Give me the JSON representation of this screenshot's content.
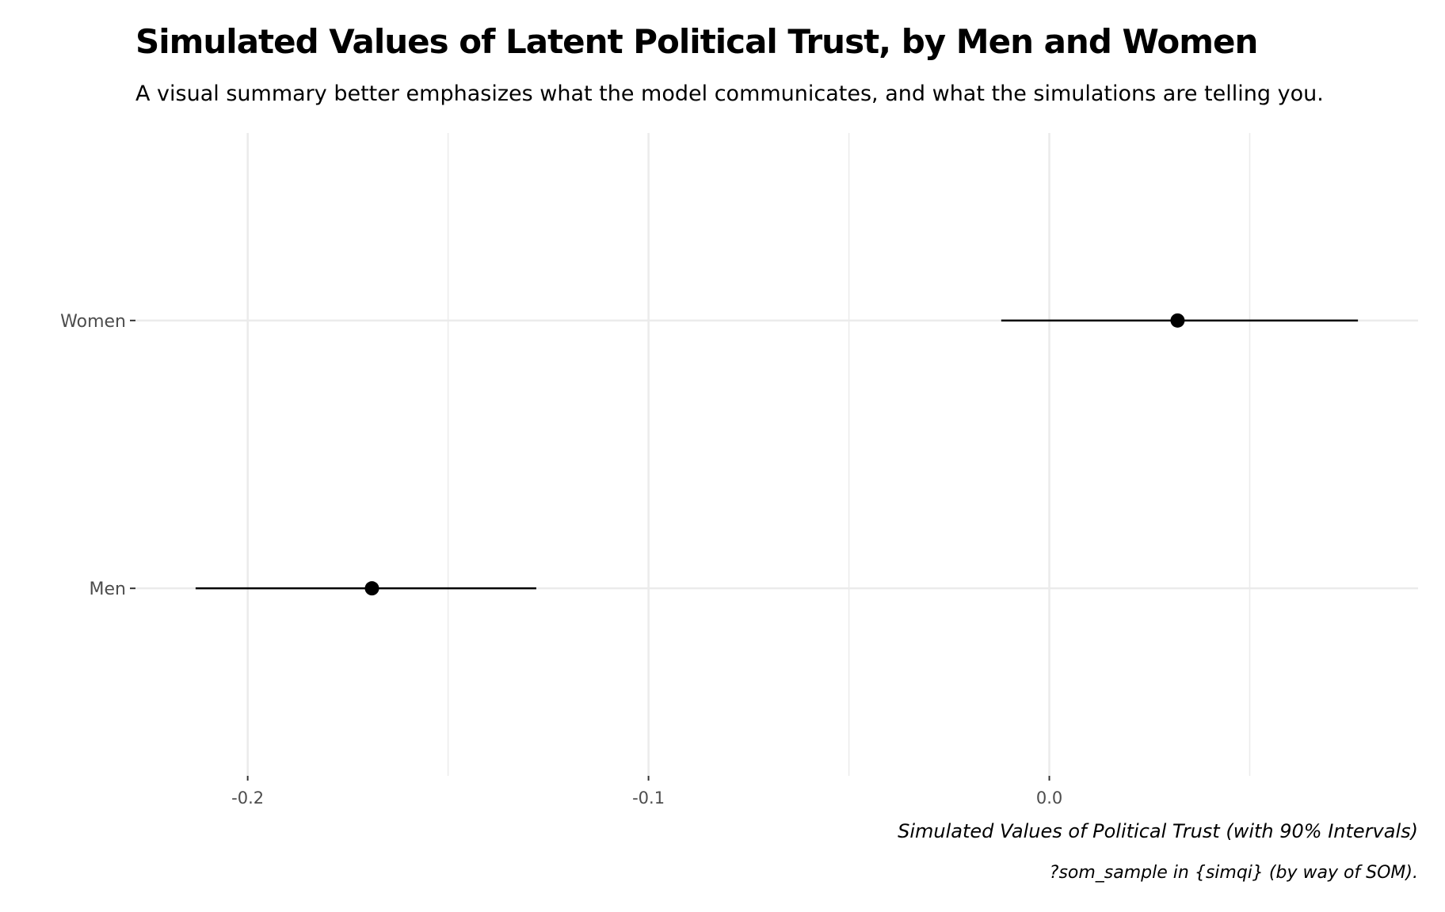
{
  "chart_data": {
    "type": "pointrange",
    "title": "Simulated Values of Latent Political Trust, by Men and Women",
    "subtitle": "A visual summary better emphasizes what the model communicates, and what the simulations are telling you.",
    "xlabel": "Simulated Values of Political Trust (with 90% Intervals)",
    "ylabel": "",
    "caption": "?som_sample in {simqi} (by way of SOM).",
    "xlim": [
      -0.228,
      0.092
    ],
    "x_ticks": [
      {
        "value": -0.2,
        "label": "-0.2"
      },
      {
        "value": -0.1,
        "label": "-0.1"
      },
      {
        "value": 0.0,
        "label": "0.0"
      }
    ],
    "x_minor_gridlines": [
      -0.15,
      -0.05,
      0.05
    ],
    "categories": [
      "Men",
      "Women"
    ],
    "points": [
      {
        "category": "Women",
        "estimate": 0.032,
        "lower": -0.012,
        "upper": 0.077
      },
      {
        "category": "Men",
        "estimate": -0.169,
        "lower": -0.213,
        "upper": -0.128
      }
    ],
    "grid": true,
    "legend": "none",
    "colors": {
      "point": "#000000",
      "interval": "#000000",
      "gridline": "#ebebeb",
      "tick_label": "#4d4d4d"
    }
  }
}
